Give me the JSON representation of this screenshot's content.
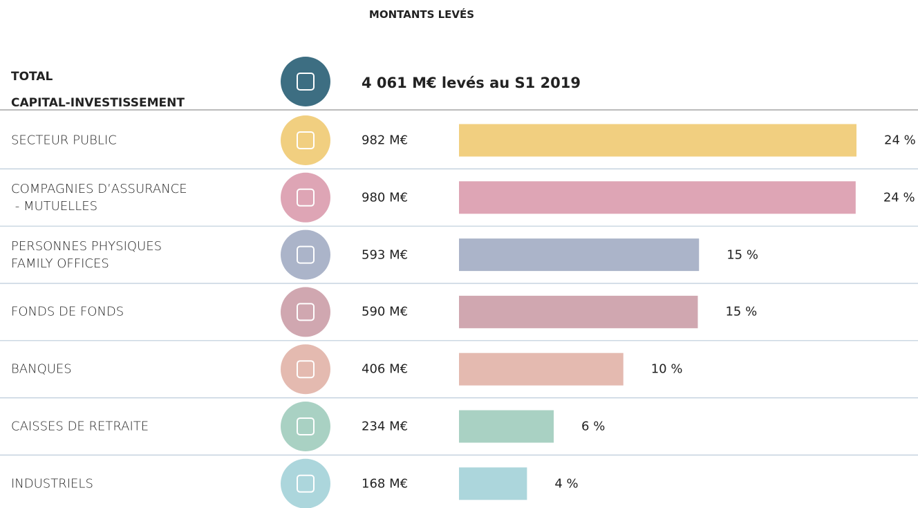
{
  "chart_data": {
    "type": "bar",
    "title": "MONTANTS LEVÉS",
    "total_label": "TOTAL\nCAPITAL-INVESTISSEMENT",
    "total_text": "4 061 M€ levés au S1 2019",
    "total_color": "#3d6e82",
    "categories": [
      "SECTEUR PUBLIC",
      "COMPAGNIES D’ASSURANCE\n - MUTUELLES",
      "PERSONNES PHYSIQUES\nFAMILY OFFICES",
      "FONDS DE FONDS",
      "BANQUES",
      "CAISSES DE RETRAITE",
      "INDUSTRIELS"
    ],
    "values": [
      982,
      980,
      593,
      590,
      406,
      234,
      168
    ],
    "value_labels": [
      "982 M€",
      "980 M€",
      "593 M€",
      "590 M€",
      "406 M€",
      "234 M€",
      "168 M€"
    ],
    "percent_labels": [
      "24 %",
      "24 %",
      "15 %",
      "15 %",
      "10 %",
      "6 %",
      "4 %"
    ],
    "colors": [
      "#f1cf80",
      "#dea5b5",
      "#abb4c9",
      "#d0a7b0",
      "#e4bab0",
      "#a9d1c3",
      "#acd6dc"
    ]
  }
}
